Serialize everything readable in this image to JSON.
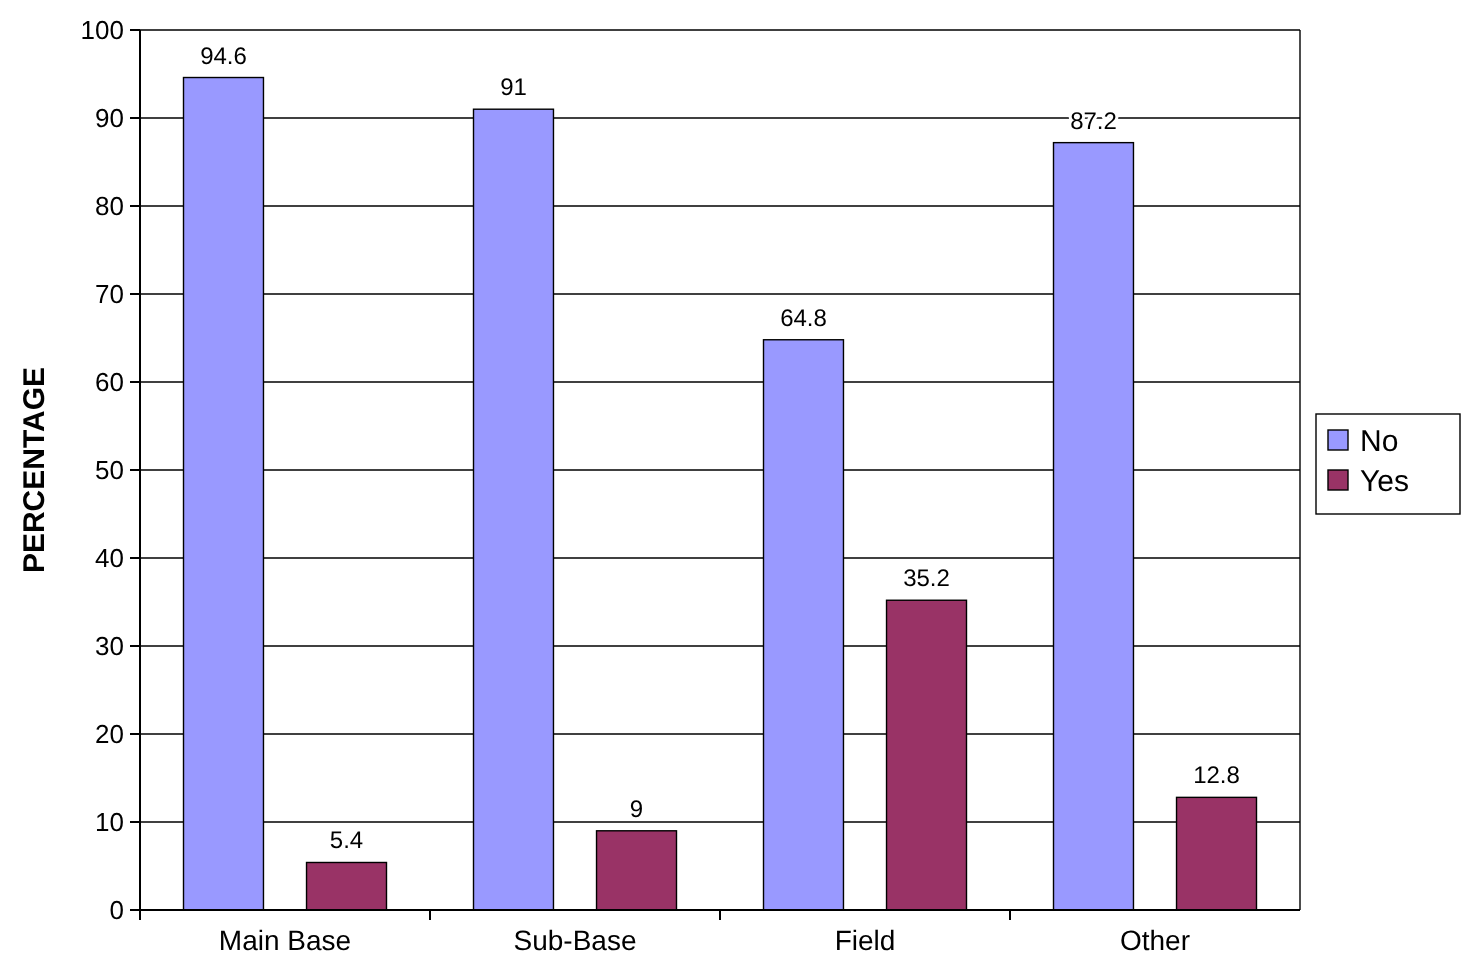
{
  "chart_data": {
    "type": "bar",
    "ylabel": "PERCENTAGE",
    "categories": [
      "Main Base",
      "Sub-Base",
      "Field",
      "Other"
    ],
    "series": [
      {
        "name": "No",
        "color": "#9999ff",
        "values": [
          94.6,
          91,
          64.8,
          87.2
        ]
      },
      {
        "name": "Yes",
        "color": "#993366",
        "values": [
          5.4,
          9,
          35.2,
          12.8
        ]
      }
    ],
    "ylim": [
      0,
      100
    ],
    "yticks": [
      0,
      10,
      20,
      30,
      40,
      50,
      60,
      70,
      80,
      90,
      100
    ],
    "grid": "y",
    "legend": "right",
    "data_labels": true
  }
}
